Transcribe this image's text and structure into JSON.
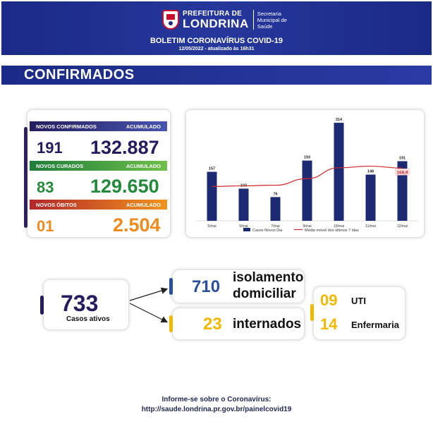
{
  "header": {
    "logo_top": "PREFEITURA DE",
    "logo_main": "LONDRINA",
    "logo_sec": [
      "Secretaria",
      "Municipal de",
      "Saúde"
    ],
    "title": "BOLETIM CORONAVÍRUS COVID-19",
    "date": "12/05/2022 - atualizado às 16h31"
  },
  "banner": {
    "title": "CONFIRMADOS"
  },
  "stats": {
    "confirmed": {
      "label": "NOVOS CONFIRMADOS",
      "acc_label": "ACUMULADO",
      "new": "191",
      "acc": "132.887",
      "color": "#231c5e"
    },
    "recovered": {
      "label": "NOVOS CURADOS",
      "acc_label": "ACUMULADO",
      "new": "83",
      "acc": "129.650",
      "color": "#238a3c"
    },
    "deaths": {
      "label": "NOVOS ÓBITOS",
      "acc_label": "ACUMULADO",
      "new": "01",
      "acc": "2.504",
      "color": "#ef8a1c"
    }
  },
  "chart_data": {
    "type": "bar",
    "categories": [
      "5/mai",
      "6/mai",
      "7/mai",
      "9/mai",
      "10/mai",
      "11/mai",
      "12/mai"
    ],
    "series": [
      {
        "name": "Casos Novos Dia",
        "type": "bar",
        "values": [
          157,
          103,
          76,
          193,
          314,
          148,
          191
        ],
        "color": "#1b2a72"
      },
      {
        "name": "Média móvel dos últimos 7 dias",
        "type": "line",
        "values": [
          110,
          112,
          114,
          135,
          170,
          175,
          168.9
        ],
        "color": "#d0262e"
      }
    ],
    "last_avg_label": "168,9",
    "ylim": [
      0,
      330
    ],
    "legend": "bottom",
    "grid": false
  },
  "summary": {
    "active": {
      "value": "733",
      "label": "Casos ativos"
    },
    "home": {
      "value": "710",
      "label1": "isolamento",
      "label2": "domiciliar"
    },
    "hosp": {
      "value": "23",
      "label": "internados"
    },
    "uti": {
      "value": "09",
      "label": "UTI"
    },
    "ward": {
      "value": "14",
      "label": "Enfermaria"
    },
    "colors": {
      "navy": "#231c5e",
      "blue": "#2a4f9e",
      "yellow": "#f2b800"
    }
  },
  "footer": {
    "line1": "Informe-se sobre o Coronavírus:",
    "line2": "http://saude.londrina.pr.gov.br/painelcovid19"
  }
}
